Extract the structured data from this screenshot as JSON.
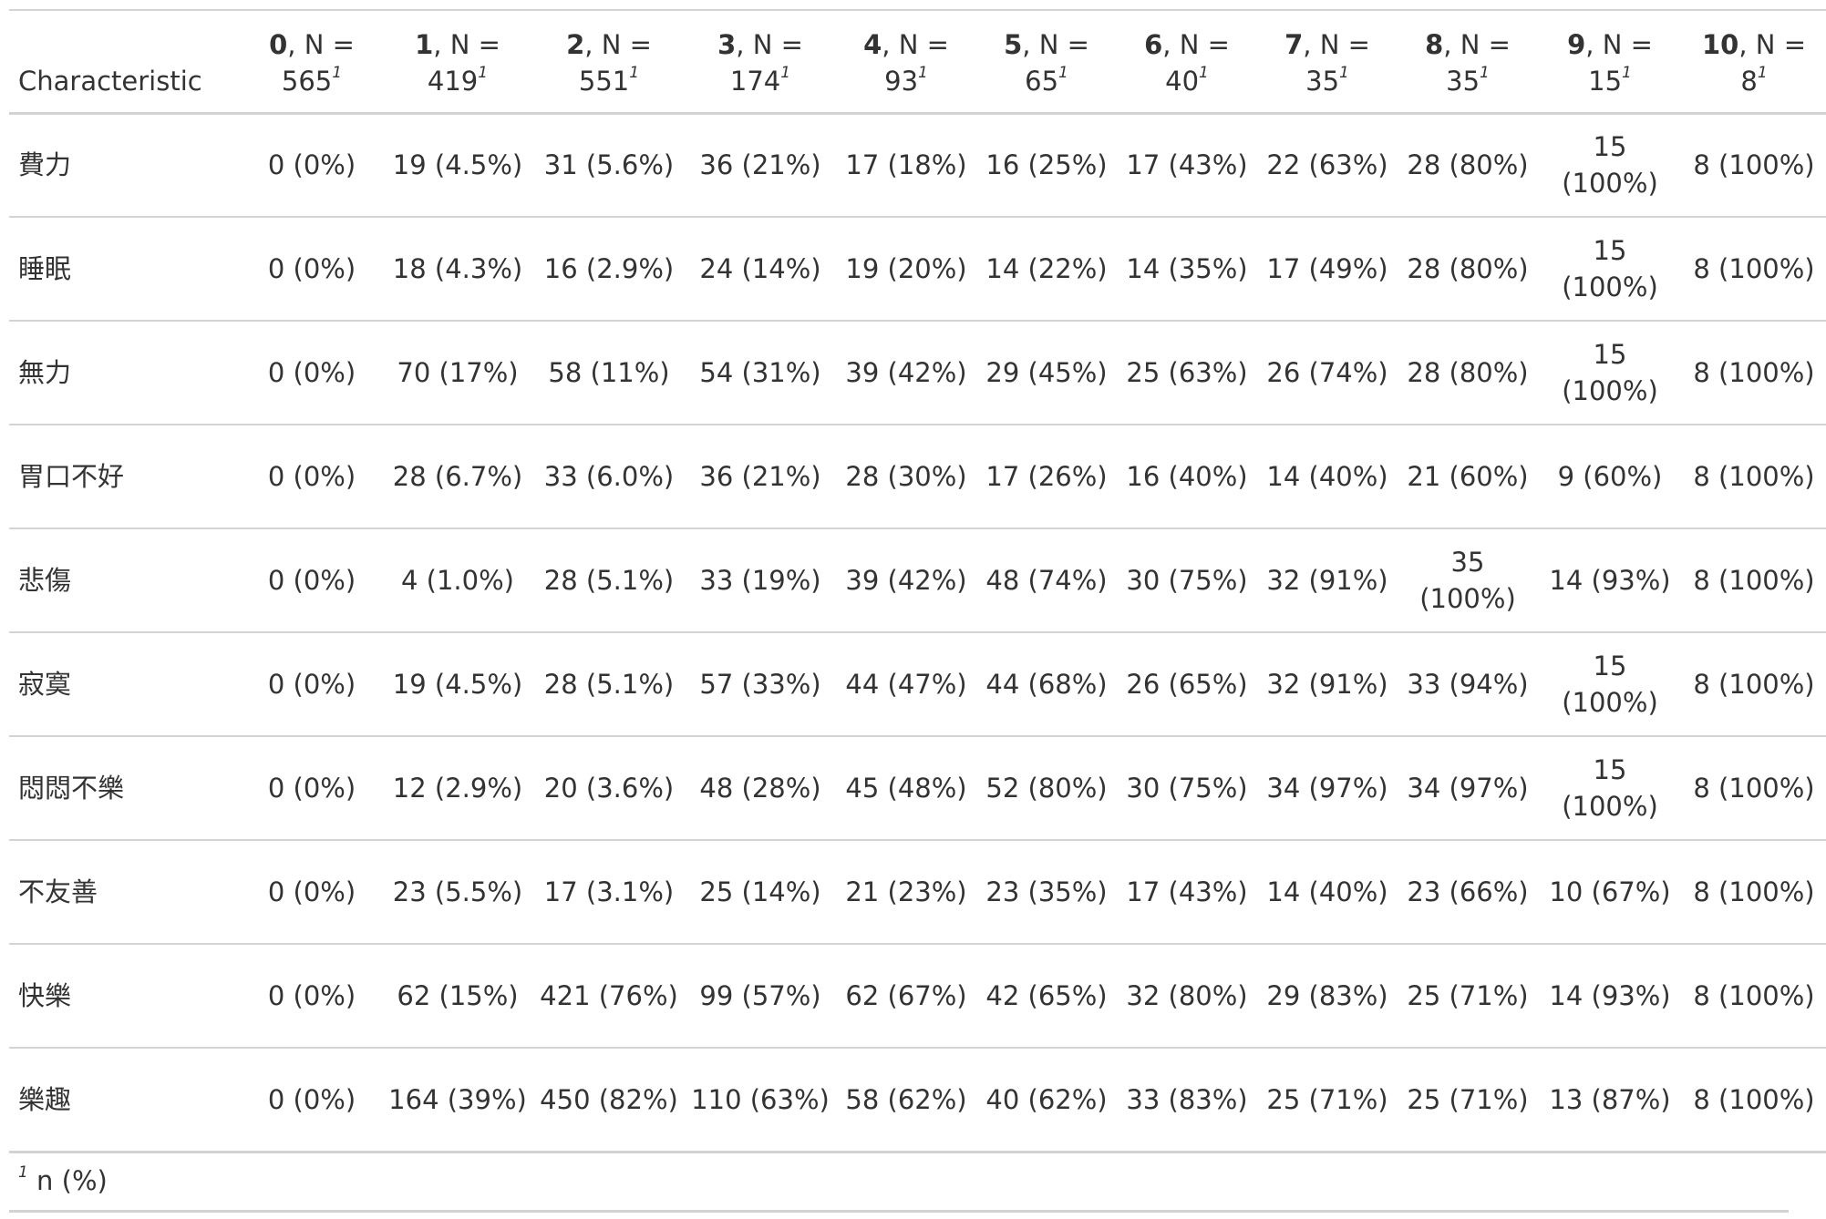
{
  "table": {
    "header_first": "Characteristic",
    "columns": [
      {
        "name": "0",
        "n_text": ", N = 565",
        "mark": "1"
      },
      {
        "name": "1",
        "n_text": ", N = 419",
        "mark": "1"
      },
      {
        "name": "2",
        "n_text": ", N = 551",
        "mark": "1"
      },
      {
        "name": "3",
        "n_text": ", N = 174",
        "mark": "1"
      },
      {
        "name": "4",
        "n_text": ", N = 93",
        "mark": "1"
      },
      {
        "name": "5",
        "n_text": ", N = 65",
        "mark": "1"
      },
      {
        "name": "6",
        "n_text": ", N = 40",
        "mark": "1"
      },
      {
        "name": "7",
        "n_text": ", N = 35",
        "mark": "1"
      },
      {
        "name": "8",
        "n_text": ", N = 35",
        "mark": "1"
      },
      {
        "name": "9",
        "n_text": ", N = 15",
        "mark": "1"
      },
      {
        "name": "10",
        "n_text": ", N = 8",
        "mark": "1"
      }
    ],
    "rows": [
      {
        "label": "費力",
        "cells": [
          "0 (0%)",
          "19 (4.5%)",
          "31 (5.6%)",
          "36 (21%)",
          "17 (18%)",
          "16 (25%)",
          "17 (43%)",
          "22 (63%)",
          "28 (80%)",
          "15 (100%)",
          "8 (100%)"
        ]
      },
      {
        "label": "睡眠",
        "cells": [
          "0 (0%)",
          "18 (4.3%)",
          "16 (2.9%)",
          "24 (14%)",
          "19 (20%)",
          "14 (22%)",
          "14 (35%)",
          "17 (49%)",
          "28 (80%)",
          "15 (100%)",
          "8 (100%)"
        ]
      },
      {
        "label": "無力",
        "cells": [
          "0 (0%)",
          "70 (17%)",
          "58 (11%)",
          "54 (31%)",
          "39 (42%)",
          "29 (45%)",
          "25 (63%)",
          "26 (74%)",
          "28 (80%)",
          "15 (100%)",
          "8 (100%)"
        ]
      },
      {
        "label": "胃口不好",
        "cells": [
          "0 (0%)",
          "28 (6.7%)",
          "33 (6.0%)",
          "36 (21%)",
          "28 (30%)",
          "17 (26%)",
          "16 (40%)",
          "14 (40%)",
          "21 (60%)",
          "9 (60%)",
          "8 (100%)"
        ]
      },
      {
        "label": "悲傷",
        "cells": [
          "0 (0%)",
          "4 (1.0%)",
          "28 (5.1%)",
          "33 (19%)",
          "39 (42%)",
          "48 (74%)",
          "30 (75%)",
          "32 (91%)",
          "35 (100%)",
          "14 (93%)",
          "8 (100%)"
        ]
      },
      {
        "label": "寂寞",
        "cells": [
          "0 (0%)",
          "19 (4.5%)",
          "28 (5.1%)",
          "57 (33%)",
          "44 (47%)",
          "44 (68%)",
          "26 (65%)",
          "32 (91%)",
          "33 (94%)",
          "15 (100%)",
          "8 (100%)"
        ]
      },
      {
        "label": "悶悶不樂",
        "cells": [
          "0 (0%)",
          "12 (2.9%)",
          "20 (3.6%)",
          "48 (28%)",
          "45 (48%)",
          "52 (80%)",
          "30 (75%)",
          "34 (97%)",
          "34 (97%)",
          "15 (100%)",
          "8 (100%)"
        ]
      },
      {
        "label": "不友善",
        "cells": [
          "0 (0%)",
          "23 (5.5%)",
          "17 (3.1%)",
          "25 (14%)",
          "21 (23%)",
          "23 (35%)",
          "17 (43%)",
          "14 (40%)",
          "23 (66%)",
          "10 (67%)",
          "8 (100%)"
        ]
      },
      {
        "label": "快樂",
        "cells": [
          "0 (0%)",
          "62 (15%)",
          "421 (76%)",
          "99 (57%)",
          "62 (67%)",
          "42 (65%)",
          "32 (80%)",
          "29 (83%)",
          "25 (71%)",
          "14 (93%)",
          "8 (100%)"
        ]
      },
      {
        "label": "樂趣",
        "cells": [
          "0 (0%)",
          "164 (39%)",
          "450 (82%)",
          "110 (63%)",
          "58 (62%)",
          "40 (62%)",
          "33 (83%)",
          "25 (71%)",
          "25 (71%)",
          "13 (87%)",
          "8 (100%)"
        ]
      }
    ],
    "footnote": {
      "mark": "1",
      "text": "n (%)"
    }
  }
}
